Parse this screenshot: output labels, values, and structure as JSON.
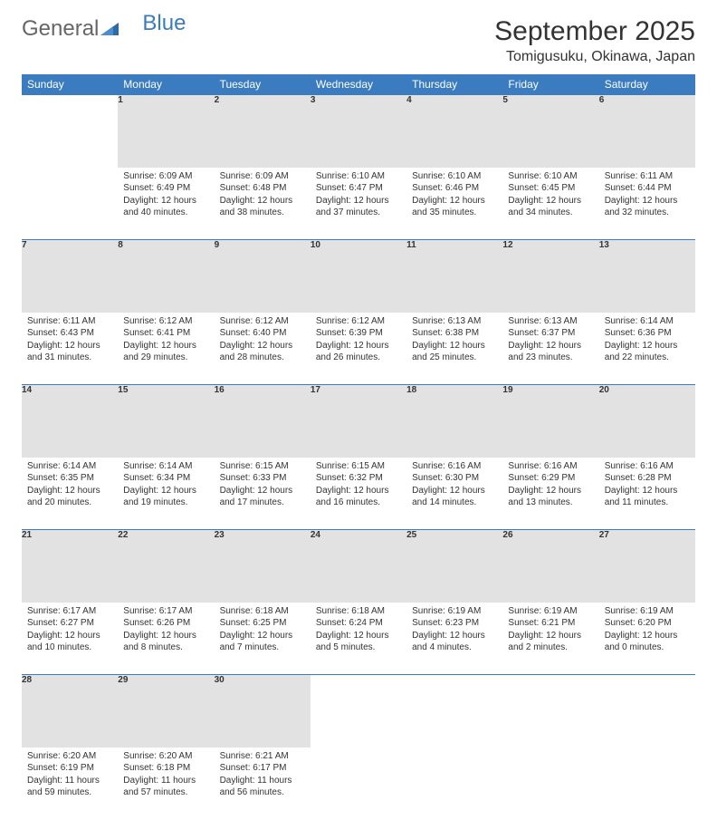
{
  "brand": {
    "part1": "General",
    "part2": "Blue"
  },
  "title": "September 2025",
  "location": "Tomigusuku, Okinawa, Japan",
  "colors": {
    "header_bg": "#3b7bbf",
    "daynum_bg": "#e2e2e2",
    "row_border": "#3b7bbf",
    "text": "#333333",
    "logo_gray": "#666666",
    "logo_blue": "#3b7bbf"
  },
  "weekdays": [
    "Sunday",
    "Monday",
    "Tuesday",
    "Wednesday",
    "Thursday",
    "Friday",
    "Saturday"
  ],
  "weeks": [
    [
      null,
      {
        "day": "1",
        "sunrise": "Sunrise: 6:09 AM",
        "sunset": "Sunset: 6:49 PM",
        "daylight": "Daylight: 12 hours and 40 minutes."
      },
      {
        "day": "2",
        "sunrise": "Sunrise: 6:09 AM",
        "sunset": "Sunset: 6:48 PM",
        "daylight": "Daylight: 12 hours and 38 minutes."
      },
      {
        "day": "3",
        "sunrise": "Sunrise: 6:10 AM",
        "sunset": "Sunset: 6:47 PM",
        "daylight": "Daylight: 12 hours and 37 minutes."
      },
      {
        "day": "4",
        "sunrise": "Sunrise: 6:10 AM",
        "sunset": "Sunset: 6:46 PM",
        "daylight": "Daylight: 12 hours and 35 minutes."
      },
      {
        "day": "5",
        "sunrise": "Sunrise: 6:10 AM",
        "sunset": "Sunset: 6:45 PM",
        "daylight": "Daylight: 12 hours and 34 minutes."
      },
      {
        "day": "6",
        "sunrise": "Sunrise: 6:11 AM",
        "sunset": "Sunset: 6:44 PM",
        "daylight": "Daylight: 12 hours and 32 minutes."
      }
    ],
    [
      {
        "day": "7",
        "sunrise": "Sunrise: 6:11 AM",
        "sunset": "Sunset: 6:43 PM",
        "daylight": "Daylight: 12 hours and 31 minutes."
      },
      {
        "day": "8",
        "sunrise": "Sunrise: 6:12 AM",
        "sunset": "Sunset: 6:41 PM",
        "daylight": "Daylight: 12 hours and 29 minutes."
      },
      {
        "day": "9",
        "sunrise": "Sunrise: 6:12 AM",
        "sunset": "Sunset: 6:40 PM",
        "daylight": "Daylight: 12 hours and 28 minutes."
      },
      {
        "day": "10",
        "sunrise": "Sunrise: 6:12 AM",
        "sunset": "Sunset: 6:39 PM",
        "daylight": "Daylight: 12 hours and 26 minutes."
      },
      {
        "day": "11",
        "sunrise": "Sunrise: 6:13 AM",
        "sunset": "Sunset: 6:38 PM",
        "daylight": "Daylight: 12 hours and 25 minutes."
      },
      {
        "day": "12",
        "sunrise": "Sunrise: 6:13 AM",
        "sunset": "Sunset: 6:37 PM",
        "daylight": "Daylight: 12 hours and 23 minutes."
      },
      {
        "day": "13",
        "sunrise": "Sunrise: 6:14 AM",
        "sunset": "Sunset: 6:36 PM",
        "daylight": "Daylight: 12 hours and 22 minutes."
      }
    ],
    [
      {
        "day": "14",
        "sunrise": "Sunrise: 6:14 AM",
        "sunset": "Sunset: 6:35 PM",
        "daylight": "Daylight: 12 hours and 20 minutes."
      },
      {
        "day": "15",
        "sunrise": "Sunrise: 6:14 AM",
        "sunset": "Sunset: 6:34 PM",
        "daylight": "Daylight: 12 hours and 19 minutes."
      },
      {
        "day": "16",
        "sunrise": "Sunrise: 6:15 AM",
        "sunset": "Sunset: 6:33 PM",
        "daylight": "Daylight: 12 hours and 17 minutes."
      },
      {
        "day": "17",
        "sunrise": "Sunrise: 6:15 AM",
        "sunset": "Sunset: 6:32 PM",
        "daylight": "Daylight: 12 hours and 16 minutes."
      },
      {
        "day": "18",
        "sunrise": "Sunrise: 6:16 AM",
        "sunset": "Sunset: 6:30 PM",
        "daylight": "Daylight: 12 hours and 14 minutes."
      },
      {
        "day": "19",
        "sunrise": "Sunrise: 6:16 AM",
        "sunset": "Sunset: 6:29 PM",
        "daylight": "Daylight: 12 hours and 13 minutes."
      },
      {
        "day": "20",
        "sunrise": "Sunrise: 6:16 AM",
        "sunset": "Sunset: 6:28 PM",
        "daylight": "Daylight: 12 hours and 11 minutes."
      }
    ],
    [
      {
        "day": "21",
        "sunrise": "Sunrise: 6:17 AM",
        "sunset": "Sunset: 6:27 PM",
        "daylight": "Daylight: 12 hours and 10 minutes."
      },
      {
        "day": "22",
        "sunrise": "Sunrise: 6:17 AM",
        "sunset": "Sunset: 6:26 PM",
        "daylight": "Daylight: 12 hours and 8 minutes."
      },
      {
        "day": "23",
        "sunrise": "Sunrise: 6:18 AM",
        "sunset": "Sunset: 6:25 PM",
        "daylight": "Daylight: 12 hours and 7 minutes."
      },
      {
        "day": "24",
        "sunrise": "Sunrise: 6:18 AM",
        "sunset": "Sunset: 6:24 PM",
        "daylight": "Daylight: 12 hours and 5 minutes."
      },
      {
        "day": "25",
        "sunrise": "Sunrise: 6:19 AM",
        "sunset": "Sunset: 6:23 PM",
        "daylight": "Daylight: 12 hours and 4 minutes."
      },
      {
        "day": "26",
        "sunrise": "Sunrise: 6:19 AM",
        "sunset": "Sunset: 6:21 PM",
        "daylight": "Daylight: 12 hours and 2 minutes."
      },
      {
        "day": "27",
        "sunrise": "Sunrise: 6:19 AM",
        "sunset": "Sunset: 6:20 PM",
        "daylight": "Daylight: 12 hours and 0 minutes."
      }
    ],
    [
      {
        "day": "28",
        "sunrise": "Sunrise: 6:20 AM",
        "sunset": "Sunset: 6:19 PM",
        "daylight": "Daylight: 11 hours and 59 minutes."
      },
      {
        "day": "29",
        "sunrise": "Sunrise: 6:20 AM",
        "sunset": "Sunset: 6:18 PM",
        "daylight": "Daylight: 11 hours and 57 minutes."
      },
      {
        "day": "30",
        "sunrise": "Sunrise: 6:21 AM",
        "sunset": "Sunset: 6:17 PM",
        "daylight": "Daylight: 11 hours and 56 minutes."
      },
      null,
      null,
      null,
      null
    ]
  ]
}
